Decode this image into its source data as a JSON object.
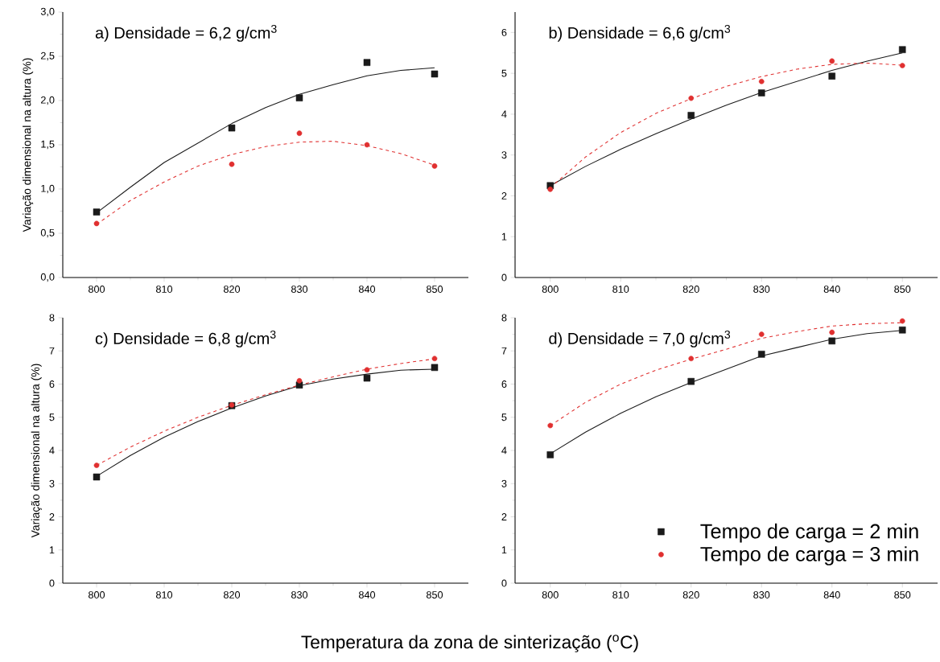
{
  "chart_data": [
    {
      "type": "scatter",
      "title": "a) Densidade = 6,2 g/cm$^{3}$",
      "ylabel": "Variação dimensional na altura (%)",
      "x": [
        800,
        820,
        830,
        840,
        850
      ],
      "xlim": [
        795,
        855
      ],
      "xticks": [
        800,
        810,
        820,
        830,
        840,
        850
      ],
      "ylim": [
        0,
        3
      ],
      "yticks": [
        {
          "value": 0,
          "label": "0,0"
        },
        {
          "value": 0.5,
          "label": "0,5"
        },
        {
          "value": 1,
          "label": "1,0"
        },
        {
          "value": 1.5,
          "label": "1,5"
        },
        {
          "value": 2,
          "label": "2,0"
        },
        {
          "value": 2.5,
          "label": "2,5"
        },
        {
          "value": 3,
          "label": "3,0"
        }
      ],
      "series": [
        {
          "color": "#1a1a1a",
          "marker": "square",
          "values": [
            0.74,
            1.69,
            2.03,
            2.43,
            2.3
          ]
        },
        {
          "color": "#e03030",
          "marker": "circle",
          "values": [
            0.61,
            1.28,
            1.63,
            1.5,
            1.26
          ]
        },
        {
          "type": "line",
          "color": "#1a1a1a",
          "line_style": "solid",
          "x": [
            800,
            805,
            810,
            815,
            820,
            825,
            830,
            835,
            840,
            845,
            850
          ],
          "values": [
            0.73,
            1.02,
            1.3,
            1.52,
            1.74,
            1.92,
            2.07,
            2.18,
            2.28,
            2.34,
            2.37
          ]
        },
        {
          "type": "line",
          "color": "#e03030",
          "line_style": "dashed",
          "x": [
            800,
            805,
            810,
            815,
            820,
            825,
            830,
            835,
            840,
            845,
            850
          ],
          "values": [
            0.6,
            0.87,
            1.08,
            1.26,
            1.39,
            1.48,
            1.53,
            1.54,
            1.49,
            1.4,
            1.27
          ]
        }
      ]
    },
    {
      "type": "scatter",
      "title": "b) Densidade = 6,6 g/cm$^{3}$",
      "x": [
        800,
        820,
        830,
        840,
        850
      ],
      "xlim": [
        795,
        855
      ],
      "xticks": [
        800,
        810,
        820,
        830,
        840,
        850
      ],
      "ylim": [
        0,
        6.5
      ],
      "yticks": [
        0,
        1,
        2,
        3,
        4,
        5,
        6
      ],
      "series": [
        {
          "color": "#1a1a1a",
          "marker": "square",
          "values": [
            2.25,
            3.97,
            4.52,
            4.93,
            5.58
          ]
        },
        {
          "color": "#e03030",
          "marker": "circle",
          "values": [
            2.16,
            4.39,
            4.8,
            5.3,
            5.19
          ]
        },
        {
          "type": "line",
          "color": "#1a1a1a",
          "line_style": "solid",
          "x": [
            800,
            805,
            810,
            815,
            820,
            825,
            830,
            835,
            840,
            845,
            850
          ],
          "values": [
            2.25,
            2.72,
            3.14,
            3.52,
            3.88,
            4.22,
            4.53,
            4.8,
            5.07,
            5.3,
            5.5
          ]
        },
        {
          "type": "line",
          "color": "#e03030",
          "line_style": "dashed",
          "x": [
            800,
            805,
            810,
            815,
            820,
            825,
            830,
            835,
            840,
            845,
            850
          ],
          "values": [
            2.2,
            2.95,
            3.55,
            4.02,
            4.38,
            4.68,
            4.92,
            5.1,
            5.22,
            5.25,
            5.2
          ]
        }
      ]
    },
    {
      "type": "scatter",
      "title": "c) Densidade = 6,8 g/cm$^{3}$",
      "ylabel": "Variação dimensional na altura (%)",
      "xlabel": "Temperatura da zona de sinterização ($^{o}$C)",
      "x": [
        800,
        820,
        830,
        840,
        850
      ],
      "xlim": [
        795,
        855
      ],
      "xticks": [
        800,
        810,
        820,
        830,
        840,
        850
      ],
      "ylim": [
        0,
        8
      ],
      "yticks": [
        0,
        1,
        2,
        3,
        4,
        5,
        6,
        7,
        8
      ],
      "series": [
        {
          "color": "#1a1a1a",
          "marker": "square",
          "values": [
            3.2,
            5.35,
            5.97,
            6.18,
            6.5
          ]
        },
        {
          "color": "#e03030",
          "marker": "circle",
          "values": [
            3.55,
            5.37,
            6.1,
            6.43,
            6.77
          ]
        },
        {
          "type": "line",
          "color": "#1a1a1a",
          "line_style": "solid",
          "x": [
            800,
            805,
            810,
            815,
            820,
            825,
            830,
            835,
            840,
            845,
            850
          ],
          "values": [
            3.22,
            3.85,
            4.4,
            4.87,
            5.28,
            5.64,
            5.95,
            6.15,
            6.3,
            6.42,
            6.45
          ]
        },
        {
          "type": "line",
          "color": "#e03030",
          "line_style": "dashed",
          "x": [
            800,
            805,
            810,
            815,
            820,
            825,
            830,
            835,
            840,
            845,
            850
          ],
          "values": [
            3.55,
            4.1,
            4.58,
            5.0,
            5.36,
            5.68,
            5.97,
            6.22,
            6.45,
            6.62,
            6.76
          ]
        }
      ]
    },
    {
      "type": "scatter",
      "title": "d) Densidade = 7,0 g/cm$^{3}$",
      "legend": "bottom right",
      "x": [
        800,
        820,
        830,
        840,
        850
      ],
      "xlim": [
        795,
        855
      ],
      "xticks": [
        800,
        810,
        820,
        830,
        840,
        850
      ],
      "ylim": [
        0,
        8
      ],
      "yticks": [
        0,
        1,
        2,
        3,
        4,
        5,
        6,
        7,
        8
      ],
      "series": [
        {
          "name": "Tempo de carga = 2 min",
          "color": "#1a1a1a",
          "marker": "square",
          "values": [
            3.87,
            6.08,
            6.9,
            7.3,
            7.63
          ]
        },
        {
          "name": "Tempo de carga = 3 min",
          "color": "#e03030",
          "marker": "circle",
          "values": [
            4.75,
            6.77,
            7.5,
            7.56,
            7.9
          ]
        },
        {
          "type": "line",
          "color": "#1a1a1a",
          "line_style": "solid",
          "x": [
            800,
            805,
            810,
            815,
            820,
            825,
            830,
            835,
            840,
            845,
            850
          ],
          "values": [
            3.9,
            4.55,
            5.12,
            5.62,
            6.05,
            6.45,
            6.85,
            7.1,
            7.35,
            7.52,
            7.62
          ]
        },
        {
          "type": "line",
          "color": "#e03030",
          "line_style": "dashed",
          "x": [
            800,
            805,
            810,
            815,
            820,
            825,
            830,
            835,
            840,
            845,
            850
          ],
          "values": [
            4.75,
            5.45,
            6.0,
            6.42,
            6.75,
            7.05,
            7.38,
            7.58,
            7.75,
            7.82,
            7.85
          ]
        }
      ]
    }
  ]
}
